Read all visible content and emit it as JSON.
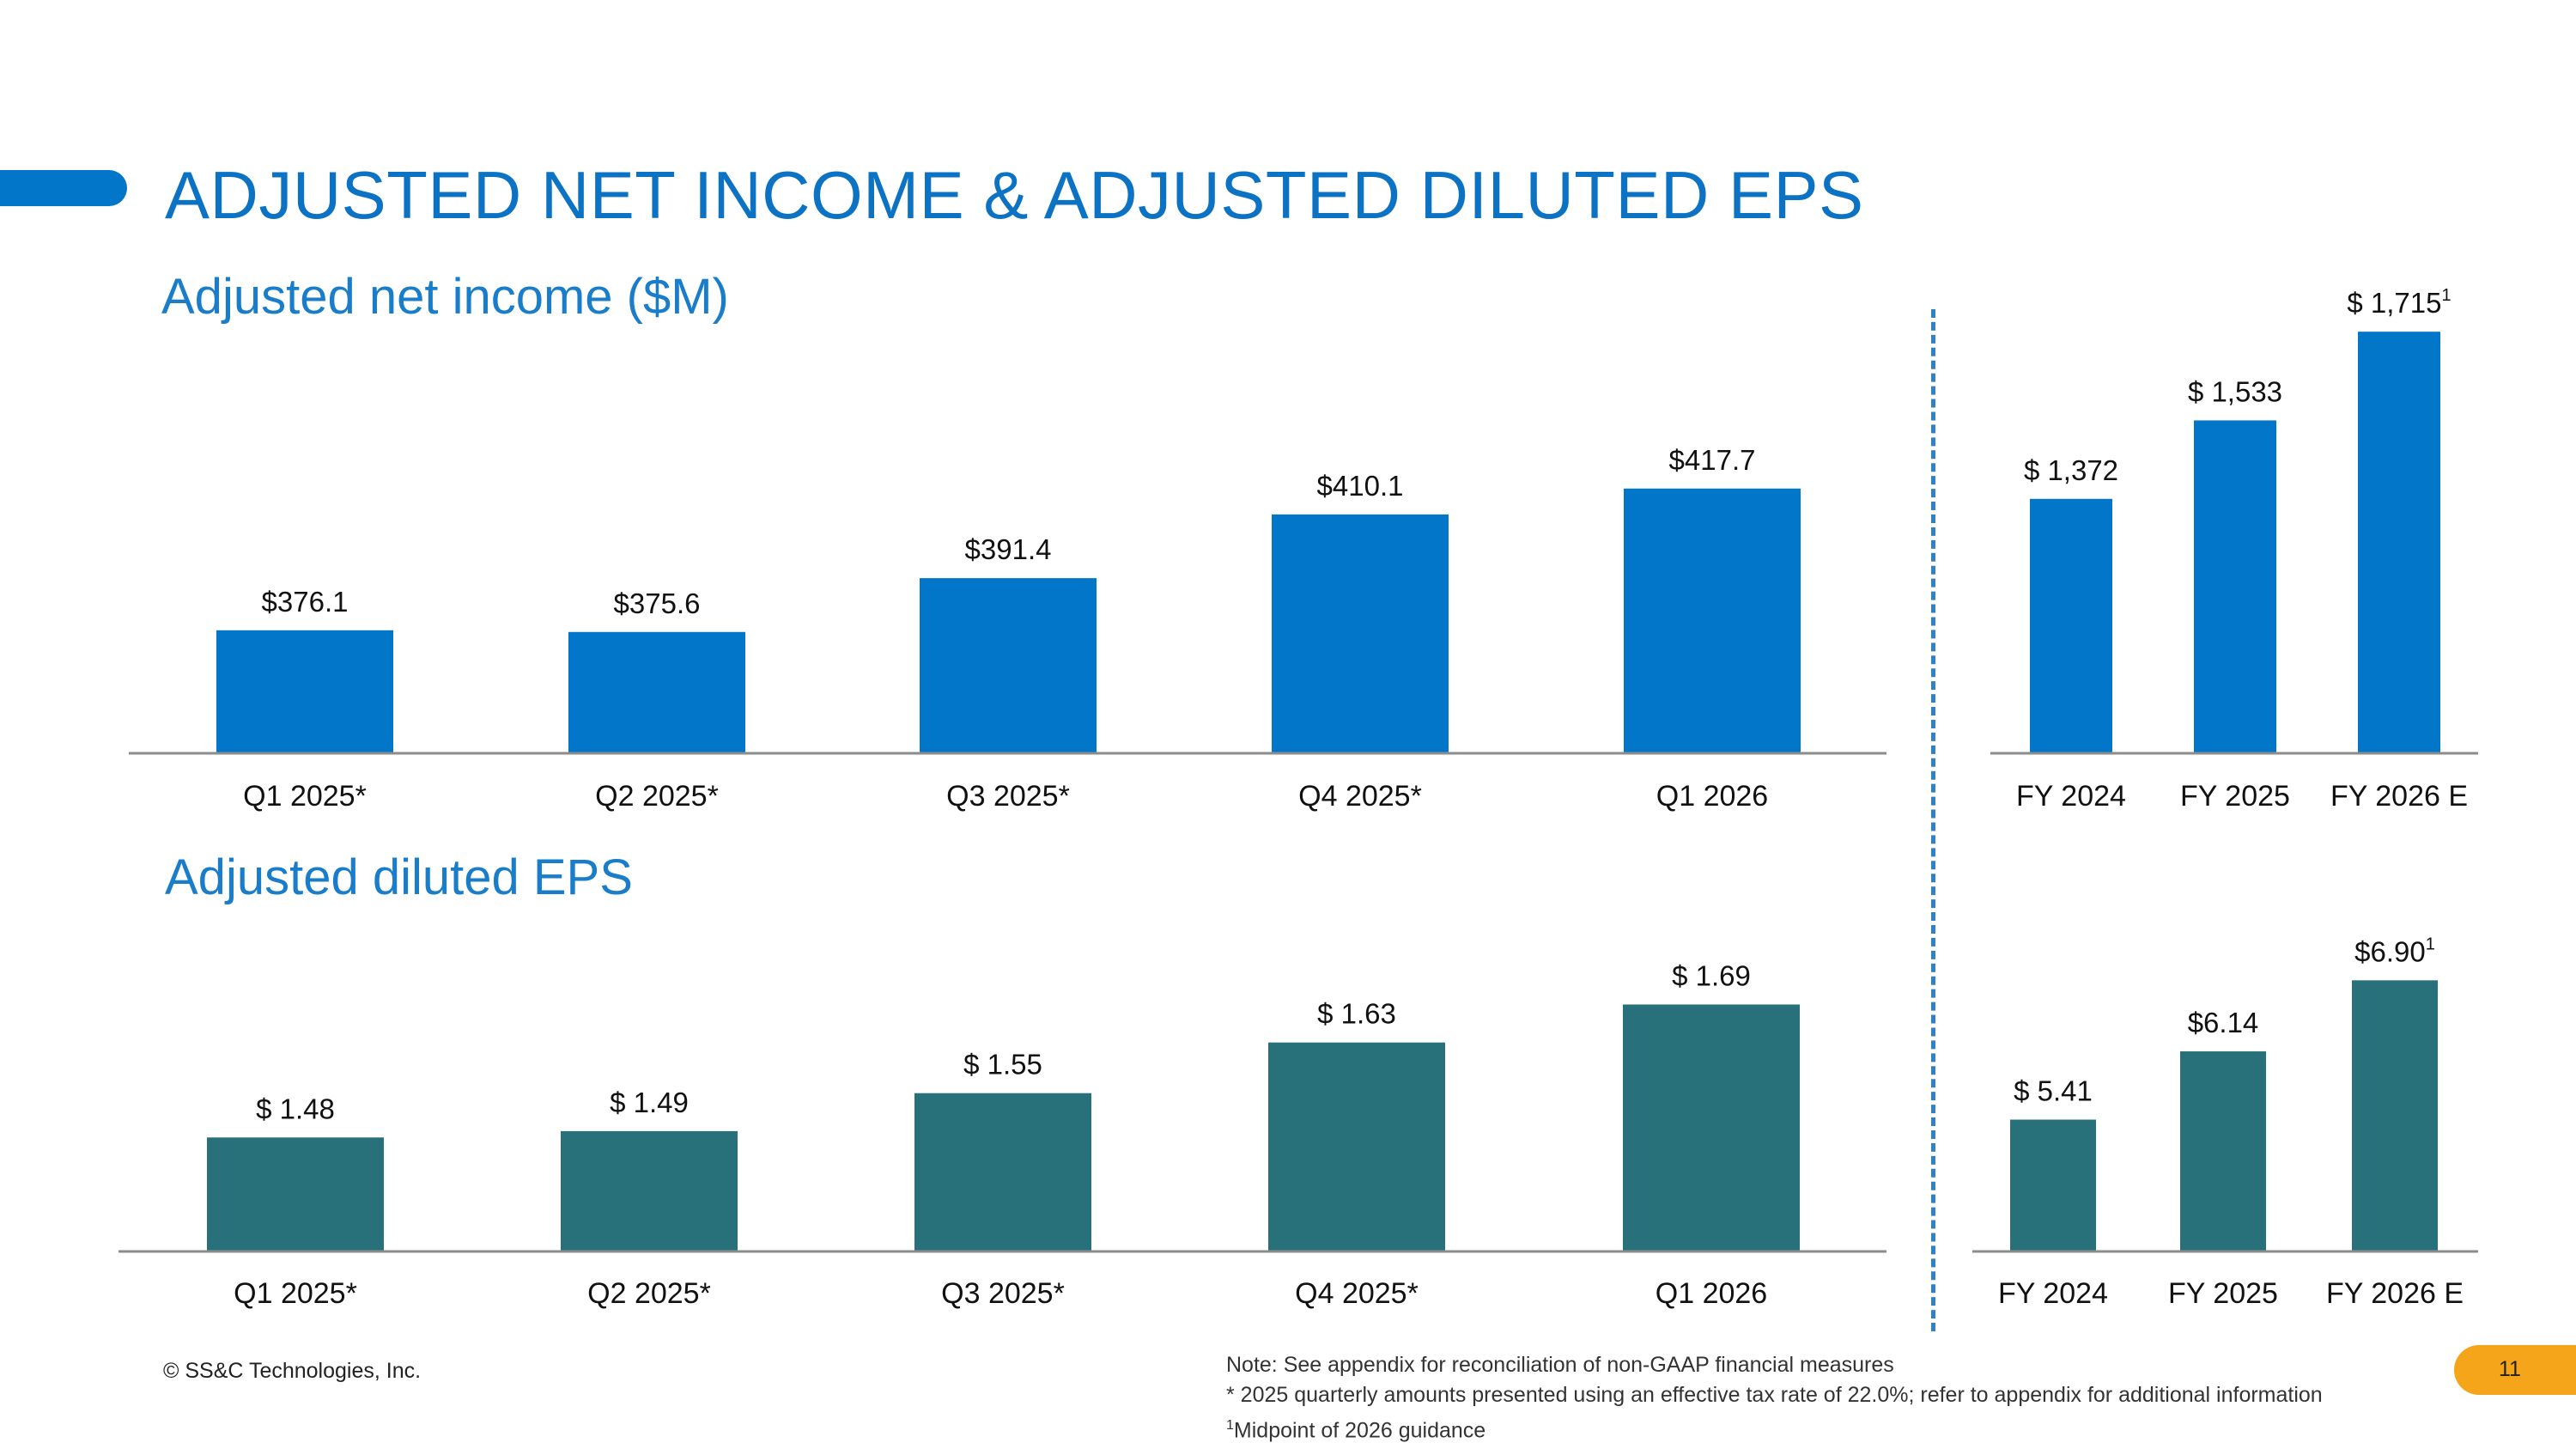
{
  "title": "ADJUSTED NET INCOME & ADJUSTED DILUTED EPS",
  "colors": {
    "primary": "#0276c9",
    "teal": "#28707a",
    "accent": "#f4a51a"
  },
  "sections": {
    "net_income": "Adjusted net income ($M)",
    "eps": "Adjusted diluted EPS"
  },
  "chart_data": [
    {
      "id": "net-income-quarterly",
      "type": "bar",
      "title": "Adjusted net income ($M)",
      "categories": [
        "Q1 2025*",
        "Q2 2025*",
        "Q3 2025*",
        "Q4 2025*",
        "Q1 2026"
      ],
      "values": [
        376.1,
        375.6,
        391.4,
        410.1,
        417.7
      ],
      "labels": [
        "$376.1",
        "$375.6",
        "$391.4",
        "$410.1",
        "$417.7"
      ],
      "ylim": [
        340,
        430
      ]
    },
    {
      "id": "net-income-annual",
      "type": "bar",
      "title": "",
      "categories": [
        "FY 2024",
        "FY 2025",
        "FY 2026 E"
      ],
      "values": [
        1372,
        1533,
        1715
      ],
      "labels": [
        "$ 1,372",
        "$ 1,533",
        "$ 1,715"
      ],
      "label_sups": [
        "",
        "",
        "1"
      ],
      "ylim": [
        850,
        1740
      ]
    },
    {
      "id": "eps-quarterly",
      "type": "bar",
      "title": "Adjusted diluted EPS",
      "categories": [
        "Q1 2025*",
        "Q2 2025*",
        "Q3 2025*",
        "Q4 2025*",
        "Q1 2026"
      ],
      "values": [
        1.48,
        1.49,
        1.55,
        1.63,
        1.69
      ],
      "labels": [
        "$ 1.48",
        "$ 1.49",
        "$ 1.55",
        "$ 1.63",
        "$ 1.69"
      ],
      "ylim": [
        1.3,
        1.73
      ]
    },
    {
      "id": "eps-annual",
      "type": "bar",
      "title": "",
      "categories": [
        "FY 2024",
        "FY 2025",
        "FY 2026 E"
      ],
      "values": [
        5.41,
        6.14,
        6.9
      ],
      "labels": [
        "$ 5.41",
        "$6.14",
        "$6.90"
      ],
      "label_sups": [
        "",
        "",
        "1"
      ],
      "ylim": [
        4,
        7.05
      ]
    }
  ],
  "footer": {
    "copyright": "© SS&C Technologies, Inc.",
    "note1": "Note: See appendix for reconciliation of non-GAAP financial measures",
    "note2": "* 2025 quarterly amounts presented using an effective tax rate of 22.0%; refer to appendix for additional information",
    "note3_sup": "1",
    "note3": "Midpoint of 2026 guidance",
    "page_number": "11"
  }
}
